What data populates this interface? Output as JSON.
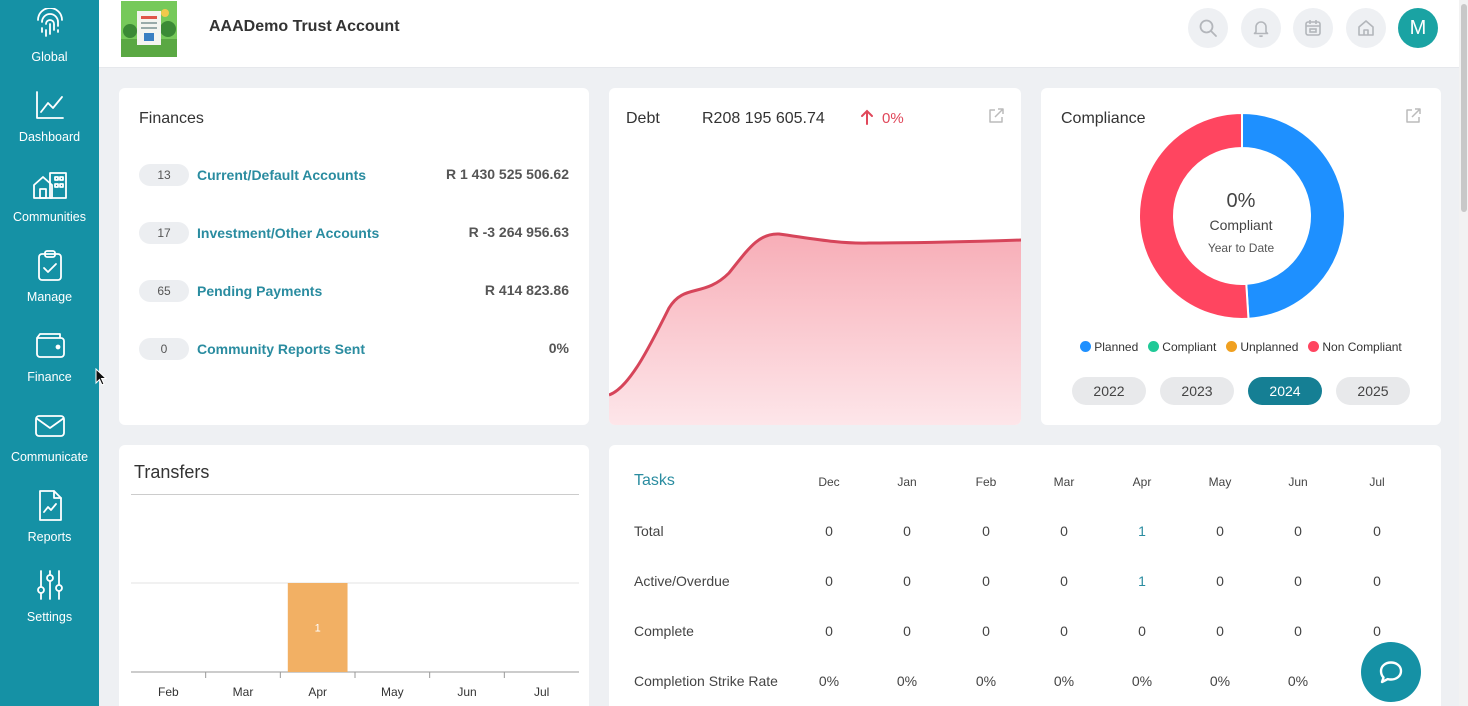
{
  "sidebar": {
    "items": [
      {
        "label": "Global",
        "icon": "fingerprint-icon"
      },
      {
        "label": "Dashboard",
        "icon": "chart-line-icon"
      },
      {
        "label": "Communities",
        "icon": "buildings-icon"
      },
      {
        "label": "Manage",
        "icon": "clipboard-check-icon"
      },
      {
        "label": "Finance",
        "icon": "wallet-icon"
      },
      {
        "label": "Communicate",
        "icon": "envelope-icon"
      },
      {
        "label": "Reports",
        "icon": "report-icon"
      },
      {
        "label": "Settings",
        "icon": "sliders-icon"
      }
    ]
  },
  "header": {
    "title": "AAADemo Trust Account",
    "avatar_initial": "M"
  },
  "finances": {
    "title": "Finances",
    "rows": [
      {
        "count": "13",
        "label": "Current/Default Accounts",
        "value": "R 1 430 525 506.62"
      },
      {
        "count": "17",
        "label": "Investment/Other Accounts",
        "value": "R -3 264 956.63"
      },
      {
        "count": "65",
        "label": "Pending Payments",
        "value": "R 414 823.86"
      },
      {
        "count": "0",
        "label": "Community Reports Sent",
        "value": "0%"
      }
    ]
  },
  "debt": {
    "title": "Debt",
    "amount": "R208 195 605.74",
    "change": "0%",
    "colors": {
      "line": "#d6455a",
      "fill": "#f9b8c0",
      "change": "#e0475a"
    }
  },
  "compliance": {
    "title": "Compliance",
    "center_percent": "0%",
    "center_label": "Compliant",
    "center_sub": "Year to Date",
    "legend": [
      {
        "label": "Planned",
        "color": "#1e90ff"
      },
      {
        "label": "Compliant",
        "color": "#20c997"
      },
      {
        "label": "Unplanned",
        "color": "#f0a020"
      },
      {
        "label": "Non Compliant",
        "color": "#ff4560"
      }
    ],
    "years": [
      "2022",
      "2023",
      "2024",
      "2025"
    ],
    "active_year": "2024",
    "chart_data": {
      "type": "pie",
      "categories": [
        "Planned",
        "Compliant",
        "Unplanned",
        "Non Compliant"
      ],
      "values": [
        49,
        0,
        0,
        51
      ]
    }
  },
  "transfers": {
    "title": "Transfers",
    "chart_data": {
      "type": "bar",
      "categories": [
        "Feb",
        "Mar",
        "Apr",
        "May",
        "Jun",
        "Jul"
      ],
      "values": [
        0,
        0,
        1,
        0,
        0,
        0
      ],
      "ylim": [
        0,
        1
      ],
      "bar_color": "#f2b064"
    }
  },
  "tasks": {
    "title": "Tasks",
    "months": [
      "Dec",
      "Jan",
      "Feb",
      "Mar",
      "Apr",
      "May",
      "Jun",
      "Jul"
    ],
    "rows": [
      {
        "label": "Total",
        "values": [
          "0",
          "0",
          "0",
          "0",
          "1",
          "0",
          "0",
          "0"
        ]
      },
      {
        "label": "Active/Overdue",
        "values": [
          "0",
          "0",
          "0",
          "0",
          "1",
          "0",
          "0",
          "0"
        ]
      },
      {
        "label": "Complete",
        "values": [
          "0",
          "0",
          "0",
          "0",
          "0",
          "0",
          "0",
          "0"
        ]
      },
      {
        "label": "Completion Strike Rate",
        "values": [
          "0%",
          "0%",
          "0%",
          "0%",
          "0%",
          "0%",
          "0%",
          ""
        ]
      }
    ]
  }
}
